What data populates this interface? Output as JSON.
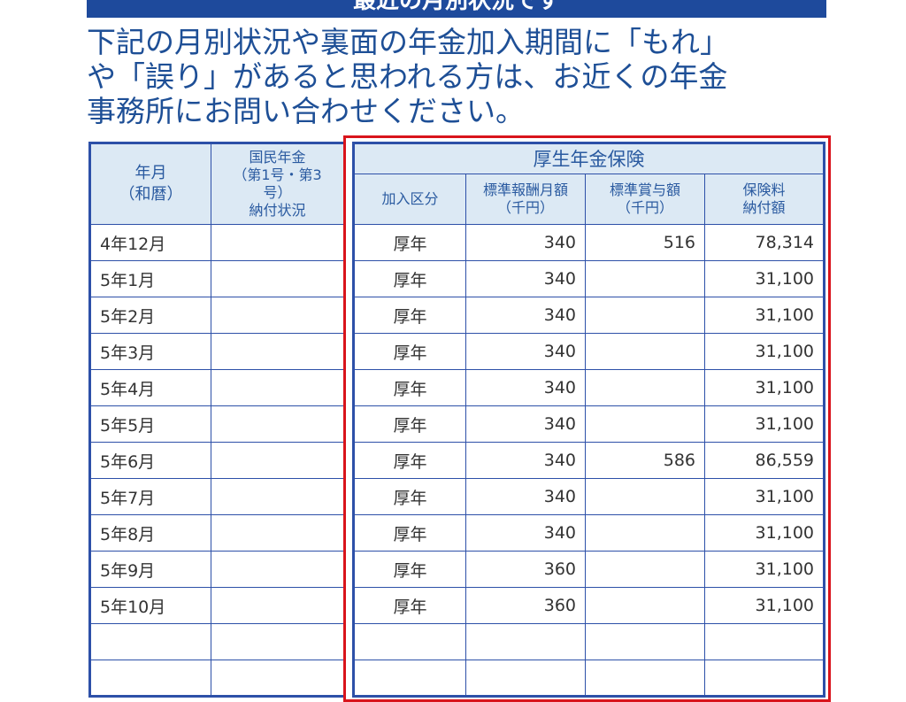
{
  "banner": {
    "title": "最近の月別状況です"
  },
  "intro": {
    "lines": [
      "下記の月別状況や裏面の年金加入期間に「もれ」",
      "や「誤り」があると思われる方は、お近くの年金",
      "事務所にお問い合わせください。"
    ]
  },
  "table": {
    "headers": {
      "year_month": "年月\n（和暦）",
      "national_pension": "国民年金\n（第1号・第3号）\n納付状況",
      "group": "厚生年金保険",
      "category": "加入区分",
      "monthly_salary": "標準報酬月額\n（千円）",
      "bonus": "標準賞与額\n（千円）",
      "premium": "保険料\n納付額"
    },
    "rows": [
      {
        "month": "4年12月",
        "national": "",
        "category": "厚年",
        "salary": "340",
        "bonus": "516",
        "premium": "78,314"
      },
      {
        "month": "5年1月",
        "national": "",
        "category": "厚年",
        "salary": "340",
        "bonus": "",
        "premium": "31,100"
      },
      {
        "month": "5年2月",
        "national": "",
        "category": "厚年",
        "salary": "340",
        "bonus": "",
        "premium": "31,100"
      },
      {
        "month": "5年3月",
        "national": "",
        "category": "厚年",
        "salary": "340",
        "bonus": "",
        "premium": "31,100"
      },
      {
        "month": "5年4月",
        "national": "",
        "category": "厚年",
        "salary": "340",
        "bonus": "",
        "premium": "31,100"
      },
      {
        "month": "5年5月",
        "national": "",
        "category": "厚年",
        "salary": "340",
        "bonus": "",
        "premium": "31,100"
      },
      {
        "month": "5年6月",
        "national": "",
        "category": "厚年",
        "salary": "340",
        "bonus": "586",
        "premium": "86,559"
      },
      {
        "month": "5年7月",
        "national": "",
        "category": "厚年",
        "salary": "340",
        "bonus": "",
        "premium": "31,100"
      },
      {
        "month": "5年8月",
        "national": "",
        "category": "厚年",
        "salary": "340",
        "bonus": "",
        "premium": "31,100"
      },
      {
        "month": "5年9月",
        "national": "",
        "category": "厚年",
        "salary": "360",
        "bonus": "",
        "premium": "31,100"
      },
      {
        "month": "5年10月",
        "national": "",
        "category": "厚年",
        "salary": "360",
        "bonus": "",
        "premium": "31,100"
      },
      {
        "month": "",
        "national": "",
        "category": "",
        "salary": "",
        "bonus": "",
        "premium": ""
      },
      {
        "month": "",
        "national": "",
        "category": "",
        "salary": "",
        "bonus": "",
        "premium": ""
      }
    ]
  },
  "highlight_color": "#d9141c",
  "accent_color": "#1e4a9c"
}
